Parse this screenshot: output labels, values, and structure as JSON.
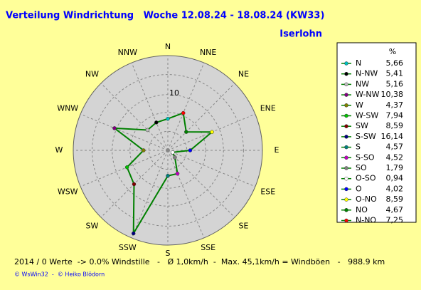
{
  "chart_data": {
    "type": "radar",
    "title": "Verteilung Windrichtung   Woche 12.08.24 - 18.08.24 (KW33)",
    "subtitle": "Iserlohn",
    "categories": [
      "N",
      "NNE",
      "NE",
      "ENE",
      "E",
      "ESE",
      "SE",
      "SSE",
      "S",
      "SSW",
      "SW",
      "WSW",
      "W",
      "WNW",
      "NW",
      "NNW"
    ],
    "legend_title": "%",
    "names": [
      "N",
      "N-NW",
      "NW",
      "W-NW",
      "W",
      "W-SW",
      "SW",
      "S-SW",
      "S",
      "S-SO",
      "SO",
      "O-SO",
      "O",
      "O-NO",
      "NO",
      "N-NO"
    ],
    "values": [
      5.66,
      5.41,
      5.16,
      10.38,
      4.37,
      7.94,
      8.59,
      16.14,
      4.57,
      4.52,
      1.79,
      0.94,
      4.02,
      8.59,
      4.67,
      7.25
    ],
    "value_labels": [
      "5,66",
      "5,41",
      "5,16",
      "10,38",
      "4,37",
      "7,94",
      "8,59",
      "16,14",
      "4,57",
      "4,52",
      "1,79",
      "0,94",
      "4,02",
      "8,59",
      "4,67",
      "7,25"
    ],
    "colors": [
      "#00c0c0",
      "#000000",
      "#c0c0c0",
      "#800080",
      "#808000",
      "#00c000",
      "#800000",
      "#000080",
      "#008080",
      "#c000c0",
      "#808080",
      "#ffffff",
      "#0000ff",
      "#ffff00",
      "#008000",
      "#ff0000"
    ],
    "line_color": "#008000",
    "ylim": [
      0,
      17
    ],
    "yticks": [
      10
    ],
    "footer": "2014 / 0 Werte  -> 0.0% Windstille   -   Ø 1,0km/h  -  Max. 45,1km/h = Windböen   -   988.9 km",
    "credit": "© WsWin32  -  © Heiko Blödorn"
  }
}
